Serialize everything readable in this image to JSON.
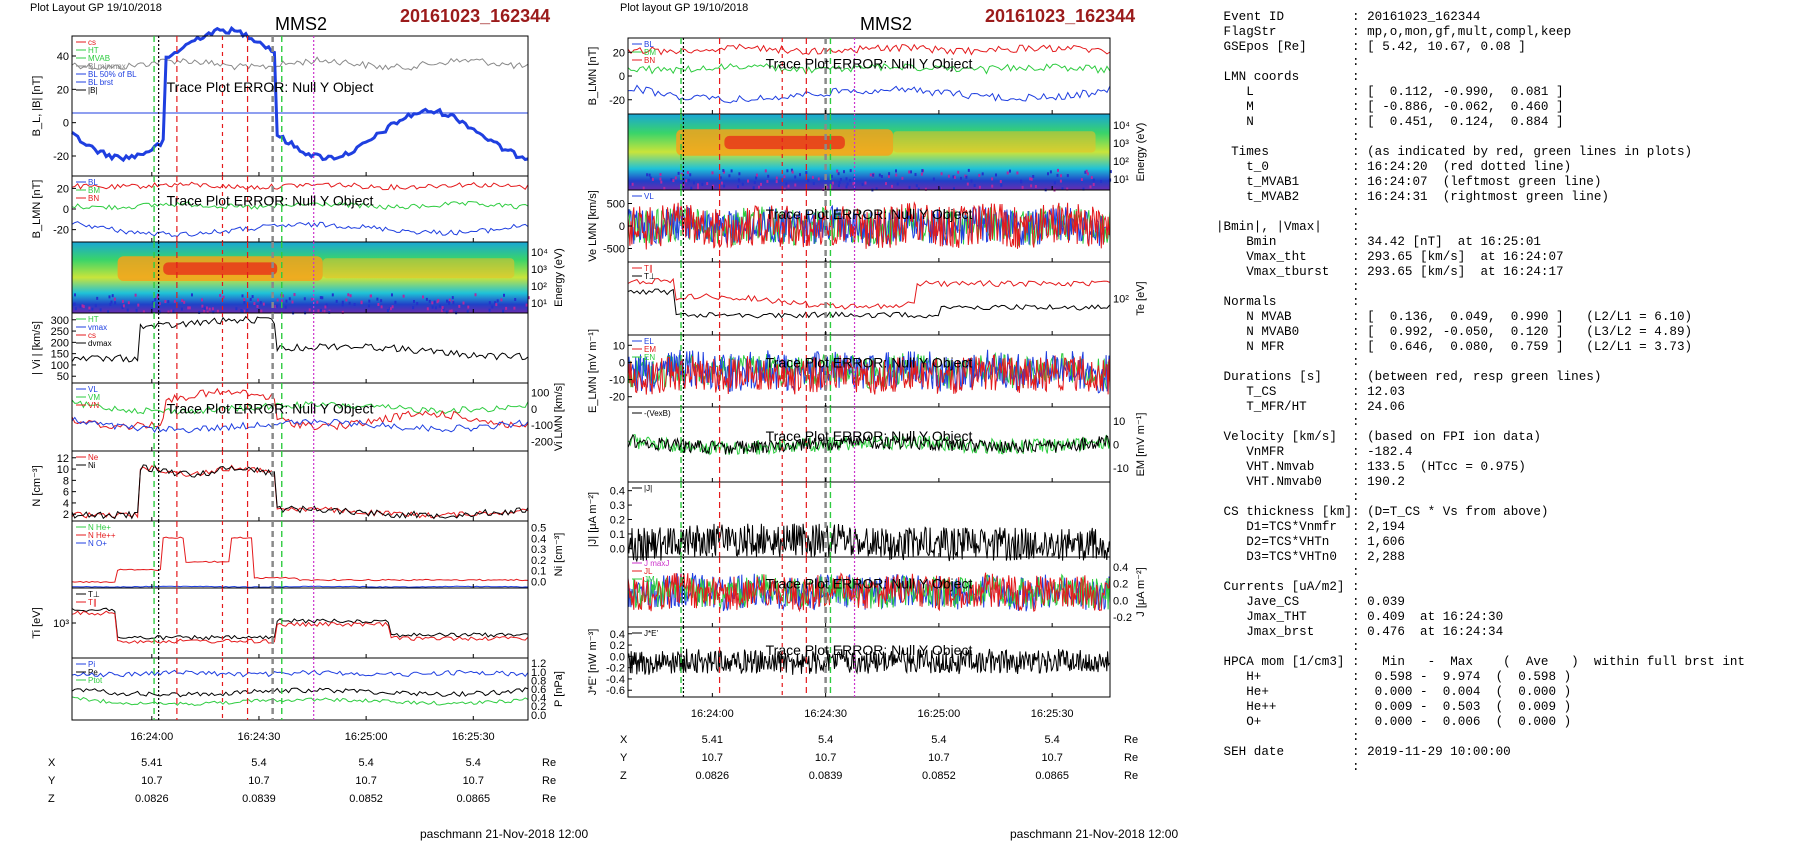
{
  "chart_data": [
    {
      "type": "line",
      "header": {
        "layout": "Plot Layout GP 19/10/2018",
        "title": "MMS2",
        "event": "20161023_162344"
      },
      "x_ticks": [
        "16:24:00",
        "16:24:30",
        "16:25:00",
        "16:25:30"
      ],
      "footer": "paschmann 21-Nov-2018 12:00",
      "ephemeris": {
        "rows": [
          {
            "label": "X",
            "values": [
              "5.41",
              "5.4",
              "5.4",
              "5.4"
            ],
            "unit": "Re"
          },
          {
            "label": "Y",
            "values": [
              "10.7",
              "10.7",
              "10.7",
              "10.7"
            ],
            "unit": "Re"
          },
          {
            "label": "Z",
            "values": [
              "0.0826",
              "0.0839",
              "0.0852",
              "0.0865"
            ],
            "unit": "Re"
          }
        ]
      },
      "panels": [
        {
          "id": "bl",
          "ylabel": "B_L, |B| [nT]",
          "yticks": [
            "40",
            "20",
            "0",
            "-20"
          ],
          "rticks": [],
          "rlabel": "",
          "legend": [
            "cs",
            "HT",
            "MVAB",
            "BLminmax",
            "BL 50% of BL",
            "BL brst",
            "|B|"
          ],
          "error": "Trace Plot ERROR: Null Y Object"
        },
        {
          "id": "blmn",
          "ylabel": "B_LMN [nT]",
          "yticks": [
            "20",
            "0",
            "-20"
          ],
          "rticks": [],
          "rlabel": "",
          "legend": [
            "BL",
            "BM",
            "BN"
          ],
          "error": "Trace Plot ERROR: Null Y Object"
        },
        {
          "id": "espec",
          "ylabel": "",
          "yticks": [],
          "rticks": [
            "10⁴",
            "10³",
            "10²",
            "10¹"
          ],
          "rlabel": "Energy (eV)",
          "legend": [],
          "error": ""
        },
        {
          "id": "vi",
          "ylabel": "| Vi | [km/s]",
          "yticks": [
            "300",
            "250",
            "200",
            "150",
            "100",
            "50"
          ],
          "rticks": [],
          "rlabel": "",
          "legend": [
            "HT",
            "vmax",
            "cs",
            "dvmax"
          ],
          "error": ""
        },
        {
          "id": "vlmn",
          "ylabel": "",
          "yticks": [],
          "rticks": [
            "100",
            "0",
            "-100",
            "-200"
          ],
          "rlabel": "Vi LMN [km/s]",
          "legend": [
            "VL",
            "VM",
            "VN"
          ],
          "error": "Trace Plot ERROR: Null Y Object"
        },
        {
          "id": "n",
          "ylabel": "N [cm⁻³]",
          "yticks": [
            "12",
            "10",
            "8",
            "6",
            "4",
            "2"
          ],
          "rticks": [],
          "rlabel": "",
          "legend": [
            "Ne",
            "Ni"
          ],
          "error": ""
        },
        {
          "id": "ni",
          "ylabel": "",
          "yticks": [],
          "rticks": [
            "0.5",
            "0.4",
            "0.3",
            "0.2",
            "0.1",
            "0.0"
          ],
          "rlabel": "Ni [cm⁻³]",
          "legend": [
            "N He+",
            "N He++",
            "N O+"
          ],
          "error": ""
        },
        {
          "id": "ti",
          "ylabel": "Ti [eV]",
          "yticks": [
            "10³"
          ],
          "rticks": [],
          "rlabel": "",
          "legend": [
            "T⊥",
            "T∥"
          ],
          "error": ""
        },
        {
          "id": "p",
          "ylabel": "",
          "yticks": [],
          "rticks": [
            "1.2",
            "1.0",
            "0.8",
            "0.6",
            "0.4",
            "0.2",
            "0.0"
          ],
          "rlabel": "P [nPa]",
          "legend": [
            "Pi",
            "Pe",
            "Ptot"
          ],
          "error": ""
        }
      ]
    },
    {
      "type": "line",
      "header": {
        "layout": "Plot layout GP 19/10/2018",
        "title": "MMS2",
        "event": "20161023_162344"
      },
      "x_ticks": [
        "16:24:00",
        "16:24:30",
        "16:25:00",
        "16:25:30"
      ],
      "footer": "paschmann 21-Nov-2018 12:00",
      "ephemeris": {
        "rows": [
          {
            "label": "X",
            "values": [
              "5.41",
              "5.4",
              "5.4",
              "5.4"
            ],
            "unit": "Re"
          },
          {
            "label": "Y",
            "values": [
              "10.7",
              "10.7",
              "10.7",
              "10.7"
            ],
            "unit": "Re"
          },
          {
            "label": "Z",
            "values": [
              "0.0826",
              "0.0839",
              "0.0852",
              "0.0865"
            ],
            "unit": "Re"
          }
        ]
      },
      "panels": [
        {
          "id": "blmn2",
          "ylabel": "B_LMN [nT]",
          "yticks": [
            "20",
            "0",
            "-20"
          ],
          "rticks": [],
          "rlabel": "",
          "legend": [
            "BL",
            "BM",
            "BN"
          ],
          "error": "Trace Plot ERROR: Null Y Object"
        },
        {
          "id": "espec2",
          "ylabel": "",
          "yticks": [],
          "rticks": [
            "10⁴",
            "10³",
            "10²",
            "10¹"
          ],
          "rlabel": "Energy (eV)",
          "legend": [],
          "error": ""
        },
        {
          "id": "ve",
          "ylabel": "Ve LMN [km/s]",
          "yticks": [
            "500",
            "0",
            "-500"
          ],
          "rticks": [],
          "rlabel": "",
          "legend": [
            "VL"
          ],
          "error": "Trace Plot ERROR: Null Y Object"
        },
        {
          "id": "te",
          "ylabel": "",
          "yticks": [],
          "rticks": [
            "10²"
          ],
          "rlabel": "Te [eV]",
          "legend": [
            "T∥",
            "T⊥"
          ],
          "error": ""
        },
        {
          "id": "elmn",
          "ylabel": "E_LMN [mV m⁻¹]",
          "yticks": [
            "10",
            "0",
            "-10",
            "-20"
          ],
          "rticks": [],
          "rlabel": "",
          "legend": [
            "EL",
            "EM",
            "EN"
          ],
          "error": "Trace Plot ERROR: Null Y Object"
        },
        {
          "id": "em",
          "ylabel": "",
          "yticks": [],
          "rticks": [
            "10",
            "0",
            "-10"
          ],
          "rlabel": "EM [mV m⁻¹]",
          "legend": [
            "-(VexB)"
          ],
          "error": "Trace Plot ERROR: Null Y Object"
        },
        {
          "id": "j",
          "ylabel": "|J| [μA m⁻²]",
          "yticks": [
            "0.4",
            "0.3",
            "0.2",
            "0.1",
            "0.0"
          ],
          "rticks": [],
          "rlabel": "",
          "legend": [
            "|J|"
          ],
          "error": ""
        },
        {
          "id": "jlmn",
          "ylabel": "",
          "yticks": [],
          "rticks": [
            "0.4",
            "0.2",
            "0.0",
            "-0.2"
          ],
          "rlabel": "J [μA m⁻²]",
          "legend": [
            "J maxJ",
            "JL",
            "JM"
          ],
          "error": "Trace Plot ERROR: Null Y Object"
        },
        {
          "id": "je",
          "ylabel": "J*E' [nW m⁻³]",
          "yticks": [
            "0.4",
            "0.2",
            "0.0",
            "-0.2",
            "-0.4",
            "-0.6"
          ],
          "rticks": [],
          "rlabel": "",
          "legend": [
            "J*E'"
          ],
          "error": "Trace Plot ERROR: Null Y Object"
        }
      ]
    }
  ],
  "info": [
    {
      "k": " Event ID",
      "v": ": 20161023_162344"
    },
    {
      "k": " FlagStr",
      "v": ": mp,o,mon,gf,mult,compl,keep"
    },
    {
      "k": " GSEpos [Re]",
      "v": ": [ 5.42, 10.67, 0.08 ]"
    },
    {
      "k": "",
      "v": ":"
    },
    {
      "k": " LMN coords",
      "v": ":"
    },
    {
      "k": "    L",
      "v": ": [  0.112, -0.990,  0.081 ]"
    },
    {
      "k": "    M",
      "v": ": [ -0.886, -0.062,  0.460 ]"
    },
    {
      "k": "    N",
      "v": ": [  0.451,  0.124,  0.884 ]"
    },
    {
      "k": "",
      "v": ":"
    },
    {
      "k": "  Times",
      "v": ": (as indicated by red, green lines in plots)"
    },
    {
      "k": "    t_0",
      "v": ": 16:24:20  (red dotted line)"
    },
    {
      "k": "    t_MVAB1",
      "v": ": 16:24:07  (leftmost green line)"
    },
    {
      "k": "    t_MVAB2",
      "v": ": 16:24:31  (rightmost green line)"
    },
    {
      "k": "",
      "v": ":"
    },
    {
      "k": "|Bmin|, |Vmax|",
      "v": ":"
    },
    {
      "k": "    Bmin",
      "v": ": 34.42 [nT]  at 16:25:01"
    },
    {
      "k": "    Vmax_tht",
      "v": ": 293.65 [km/s]  at 16:24:07"
    },
    {
      "k": "    Vmax_tburst",
      "v": ": 293.65 [km/s]  at 16:24:17"
    },
    {
      "k": "",
      "v": ":"
    },
    {
      "k": " Normals",
      "v": ":"
    },
    {
      "k": "    N MVAB",
      "v": ": [  0.136,  0.049,  0.990 ]   (L2/L1 = 6.10)"
    },
    {
      "k": "    N MVAB0",
      "v": ": [  0.992, -0.050,  0.120 ]   (L3/L2 = 4.89)"
    },
    {
      "k": "    N MFR",
      "v": ": [  0.646,  0.080,  0.759 ]   (L2/L1 = 3.73)"
    },
    {
      "k": "",
      "v": ":"
    },
    {
      "k": " Durations [s]",
      "v": ": (between red, resp green lines)"
    },
    {
      "k": "    T_CS",
      "v": ": 12.03"
    },
    {
      "k": "    T_MFR/HT",
      "v": ": 24.06"
    },
    {
      "k": "",
      "v": ":"
    },
    {
      "k": " Velocity [km/s]",
      "v": ": (based on FPI ion data)"
    },
    {
      "k": "    VnMFR",
      "v": ": -182.4"
    },
    {
      "k": "    VHT.Nmvab",
      "v": ": 133.5  (HTcc = 0.975)"
    },
    {
      "k": "    VHT.Nmvab0",
      "v": ": 190.2"
    },
    {
      "k": "",
      "v": ":"
    },
    {
      "k": " CS thickness [km]",
      "v": ": (D=T_CS * Vs from above)"
    },
    {
      "k": "    D1=TCS*Vnmfr",
      "v": ": 2,194"
    },
    {
      "k": "    D2=TCS*VHTn",
      "v": ": 1,606"
    },
    {
      "k": "    D3=TCS*VHTn0",
      "v": ": 2,288"
    },
    {
      "k": "",
      "v": ":"
    },
    {
      "k": " Currents [uA/m2]",
      "v": ":"
    },
    {
      "k": "    Jave_CS",
      "v": ": 0.039"
    },
    {
      "k": "    Jmax_THT",
      "v": ": 0.409  at 16:24:30"
    },
    {
      "k": "    Jmax_brst",
      "v": ": 0.476  at 16:24:34"
    },
    {
      "k": "",
      "v": ":"
    },
    {
      "k": " HPCA mom [1/cm3]",
      "v": ":   Min   -  Max    (  Ave   )  within full brst int"
    },
    {
      "k": "    H+",
      "v": ":  0.598 -  9.974  (  0.598 )"
    },
    {
      "k": "    He+",
      "v": ":  0.000 -  0.004  (  0.000 )"
    },
    {
      "k": "    He++",
      "v": ":  0.009 -  0.503  (  0.009 )"
    },
    {
      "k": "    O+",
      "v": ":  0.000 -  0.006  (  0.000 )"
    },
    {
      "k": "",
      "v": ":"
    },
    {
      "k": " SEH date",
      "v": ": 2019-11-29 10:00:00"
    },
    {
      "k": "",
      "v": ":"
    }
  ],
  "colors": {
    "red": "#e41a1c",
    "green": "#2ecc40",
    "blue": "#1f3fe0",
    "black": "#000000",
    "gray": "#8a8a8a",
    "title_red": "#9b1b1b",
    "magenta": "#cc33cc"
  }
}
